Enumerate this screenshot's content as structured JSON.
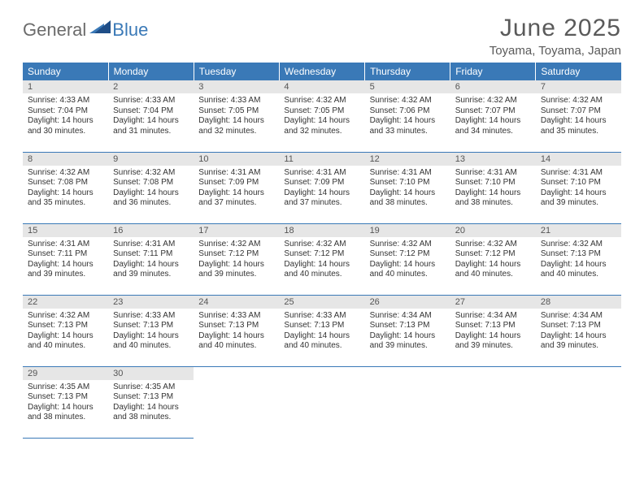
{
  "logo": {
    "general": "General",
    "blue": "Blue"
  },
  "title": "June 2025",
  "location": "Toyama, Toyama, Japan",
  "columns": [
    "Sunday",
    "Monday",
    "Tuesday",
    "Wednesday",
    "Thursday",
    "Friday",
    "Saturday"
  ],
  "colors": {
    "header_bg": "#3a79b7",
    "header_fg": "#ffffff",
    "daybar_bg": "#e6e6e6",
    "rule": "#3a79b7",
    "logo_gray": "#6b6b6b",
    "logo_blue": "#3a79b7"
  },
  "weeks": [
    [
      {
        "n": "1",
        "sr": "Sunrise: 4:33 AM",
        "ss": "Sunset: 7:04 PM",
        "d1": "Daylight: 14 hours",
        "d2": "and 30 minutes."
      },
      {
        "n": "2",
        "sr": "Sunrise: 4:33 AM",
        "ss": "Sunset: 7:04 PM",
        "d1": "Daylight: 14 hours",
        "d2": "and 31 minutes."
      },
      {
        "n": "3",
        "sr": "Sunrise: 4:33 AM",
        "ss": "Sunset: 7:05 PM",
        "d1": "Daylight: 14 hours",
        "d2": "and 32 minutes."
      },
      {
        "n": "4",
        "sr": "Sunrise: 4:32 AM",
        "ss": "Sunset: 7:05 PM",
        "d1": "Daylight: 14 hours",
        "d2": "and 32 minutes."
      },
      {
        "n": "5",
        "sr": "Sunrise: 4:32 AM",
        "ss": "Sunset: 7:06 PM",
        "d1": "Daylight: 14 hours",
        "d2": "and 33 minutes."
      },
      {
        "n": "6",
        "sr": "Sunrise: 4:32 AM",
        "ss": "Sunset: 7:07 PM",
        "d1": "Daylight: 14 hours",
        "d2": "and 34 minutes."
      },
      {
        "n": "7",
        "sr": "Sunrise: 4:32 AM",
        "ss": "Sunset: 7:07 PM",
        "d1": "Daylight: 14 hours",
        "d2": "and 35 minutes."
      }
    ],
    [
      {
        "n": "8",
        "sr": "Sunrise: 4:32 AM",
        "ss": "Sunset: 7:08 PM",
        "d1": "Daylight: 14 hours",
        "d2": "and 35 minutes."
      },
      {
        "n": "9",
        "sr": "Sunrise: 4:32 AM",
        "ss": "Sunset: 7:08 PM",
        "d1": "Daylight: 14 hours",
        "d2": "and 36 minutes."
      },
      {
        "n": "10",
        "sr": "Sunrise: 4:31 AM",
        "ss": "Sunset: 7:09 PM",
        "d1": "Daylight: 14 hours",
        "d2": "and 37 minutes."
      },
      {
        "n": "11",
        "sr": "Sunrise: 4:31 AM",
        "ss": "Sunset: 7:09 PM",
        "d1": "Daylight: 14 hours",
        "d2": "and 37 minutes."
      },
      {
        "n": "12",
        "sr": "Sunrise: 4:31 AM",
        "ss": "Sunset: 7:10 PM",
        "d1": "Daylight: 14 hours",
        "d2": "and 38 minutes."
      },
      {
        "n": "13",
        "sr": "Sunrise: 4:31 AM",
        "ss": "Sunset: 7:10 PM",
        "d1": "Daylight: 14 hours",
        "d2": "and 38 minutes."
      },
      {
        "n": "14",
        "sr": "Sunrise: 4:31 AM",
        "ss": "Sunset: 7:10 PM",
        "d1": "Daylight: 14 hours",
        "d2": "and 39 minutes."
      }
    ],
    [
      {
        "n": "15",
        "sr": "Sunrise: 4:31 AM",
        "ss": "Sunset: 7:11 PM",
        "d1": "Daylight: 14 hours",
        "d2": "and 39 minutes."
      },
      {
        "n": "16",
        "sr": "Sunrise: 4:31 AM",
        "ss": "Sunset: 7:11 PM",
        "d1": "Daylight: 14 hours",
        "d2": "and 39 minutes."
      },
      {
        "n": "17",
        "sr": "Sunrise: 4:32 AM",
        "ss": "Sunset: 7:12 PM",
        "d1": "Daylight: 14 hours",
        "d2": "and 39 minutes."
      },
      {
        "n": "18",
        "sr": "Sunrise: 4:32 AM",
        "ss": "Sunset: 7:12 PM",
        "d1": "Daylight: 14 hours",
        "d2": "and 40 minutes."
      },
      {
        "n": "19",
        "sr": "Sunrise: 4:32 AM",
        "ss": "Sunset: 7:12 PM",
        "d1": "Daylight: 14 hours",
        "d2": "and 40 minutes."
      },
      {
        "n": "20",
        "sr": "Sunrise: 4:32 AM",
        "ss": "Sunset: 7:12 PM",
        "d1": "Daylight: 14 hours",
        "d2": "and 40 minutes."
      },
      {
        "n": "21",
        "sr": "Sunrise: 4:32 AM",
        "ss": "Sunset: 7:13 PM",
        "d1": "Daylight: 14 hours",
        "d2": "and 40 minutes."
      }
    ],
    [
      {
        "n": "22",
        "sr": "Sunrise: 4:32 AM",
        "ss": "Sunset: 7:13 PM",
        "d1": "Daylight: 14 hours",
        "d2": "and 40 minutes."
      },
      {
        "n": "23",
        "sr": "Sunrise: 4:33 AM",
        "ss": "Sunset: 7:13 PM",
        "d1": "Daylight: 14 hours",
        "d2": "and 40 minutes."
      },
      {
        "n": "24",
        "sr": "Sunrise: 4:33 AM",
        "ss": "Sunset: 7:13 PM",
        "d1": "Daylight: 14 hours",
        "d2": "and 40 minutes."
      },
      {
        "n": "25",
        "sr": "Sunrise: 4:33 AM",
        "ss": "Sunset: 7:13 PM",
        "d1": "Daylight: 14 hours",
        "d2": "and 40 minutes."
      },
      {
        "n": "26",
        "sr": "Sunrise: 4:34 AM",
        "ss": "Sunset: 7:13 PM",
        "d1": "Daylight: 14 hours",
        "d2": "and 39 minutes."
      },
      {
        "n": "27",
        "sr": "Sunrise: 4:34 AM",
        "ss": "Sunset: 7:13 PM",
        "d1": "Daylight: 14 hours",
        "d2": "and 39 minutes."
      },
      {
        "n": "28",
        "sr": "Sunrise: 4:34 AM",
        "ss": "Sunset: 7:13 PM",
        "d1": "Daylight: 14 hours",
        "d2": "and 39 minutes."
      }
    ],
    [
      {
        "n": "29",
        "sr": "Sunrise: 4:35 AM",
        "ss": "Sunset: 7:13 PM",
        "d1": "Daylight: 14 hours",
        "d2": "and 38 minutes."
      },
      {
        "n": "30",
        "sr": "Sunrise: 4:35 AM",
        "ss": "Sunset: 7:13 PM",
        "d1": "Daylight: 14 hours",
        "d2": "and 38 minutes."
      },
      null,
      null,
      null,
      null,
      null
    ]
  ]
}
